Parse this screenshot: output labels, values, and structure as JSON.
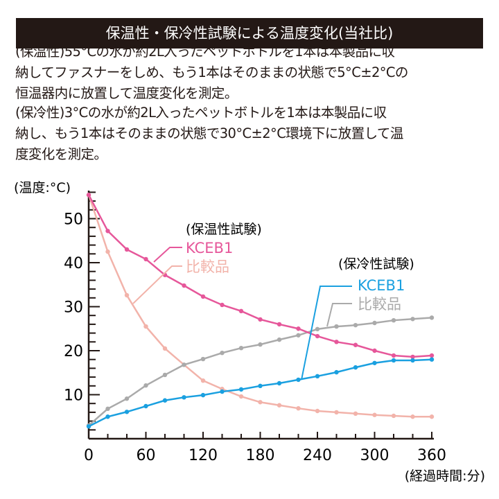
{
  "banner_title": "保温性・保冷性試験による温度変化(当社比)",
  "description": {
    "heat": [
      "(保温性)55°Cの水が約2L入ったペットボトルを1本は本製品に収",
      "納してファスナーをしめ、もう1本はそのままの状態で5°C±2°Cの",
      "恒温器内に放置して温度変化を測定。"
    ],
    "cold": [
      "(保冷性)3°Cの水が約2L入ったペットボトルを1本は本製品に収",
      "納し、もう1本はそのままの状態で30°C±2°C環境下に放置して温",
      "度変化を測定。"
    ]
  },
  "chart_data": {
    "type": "line",
    "title": "保温性・保冷性試験による温度変化(当社比)",
    "xlabel": "(経過時間:分)",
    "ylabel": "(温度:°C)",
    "xlim": [
      0,
      360
    ],
    "ylim": [
      0,
      57
    ],
    "xticks": [
      "0",
      "60",
      "120",
      "180",
      "240",
      "300",
      "360"
    ],
    "yticks": [
      "10",
      "20",
      "30",
      "40",
      "50"
    ],
    "x": [
      0,
      20,
      40,
      60,
      80,
      100,
      120,
      140,
      160,
      180,
      200,
      220,
      240,
      260,
      280,
      300,
      320,
      340,
      360
    ],
    "groups": [
      {
        "label": "(保温性試験)",
        "series_names": [
          "KCEB1",
          "比較品"
        ]
      },
      {
        "label": "(保冷性試験)",
        "series_names": [
          "KCEB1",
          "比較品"
        ]
      }
    ],
    "series": [
      {
        "name": "KCEB1",
        "group": "保温性試験",
        "color": "#e6579a",
        "values": [
          55.4,
          47.2,
          43.0,
          40.8,
          37.2,
          34.8,
          32.3,
          30.4,
          29.0,
          27.1,
          26.0,
          25.0,
          23.3,
          22.0,
          21.3,
          20.0,
          18.9,
          18.6,
          18.9
        ]
      },
      {
        "name": "比較品",
        "group": "保温性試験",
        "color": "#f2b3aa",
        "values": [
          55.4,
          42.5,
          32.6,
          25.5,
          20.5,
          16.8,
          13.2,
          11.3,
          9.6,
          8.3,
          7.6,
          6.9,
          6.3,
          6.0,
          5.7,
          5.4,
          5.2,
          5.0,
          5.0
        ]
      },
      {
        "name": "KCEB1",
        "group": "保冷性試験",
        "color": "#1aa0e0",
        "values": [
          2.8,
          5.0,
          6.1,
          7.4,
          8.7,
          9.4,
          9.9,
          10.7,
          11.2,
          12.0,
          12.6,
          13.4,
          14.2,
          15.1,
          16.2,
          17.2,
          17.8,
          17.8,
          18.0
        ]
      },
      {
        "name": "比較品",
        "group": "保冷性試験",
        "color": "#aaaaaa",
        "values": [
          3.0,
          6.8,
          9.1,
          12.1,
          14.5,
          16.8,
          18.1,
          19.5,
          20.6,
          21.4,
          22.5,
          23.5,
          24.9,
          25.5,
          25.8,
          26.3,
          26.9,
          27.2,
          27.5
        ]
      }
    ]
  }
}
